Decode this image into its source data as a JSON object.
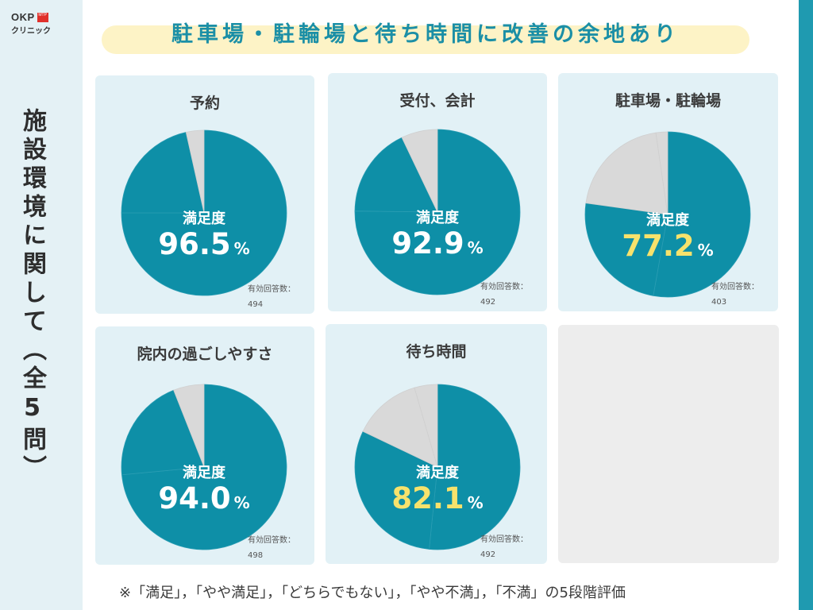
{
  "logo": {
    "brand": "OKP",
    "badge": "MTP",
    "sub": "クリニック"
  },
  "sidebar": {
    "title": "施設環境に関して（全5問）"
  },
  "heading": {
    "text": "駐車場・駐輪場と待ち時間に改善の余地あり"
  },
  "common": {
    "satisfaction_label": "満足度",
    "respondents_label": "有効回答数：",
    "percent_symbol": "%"
  },
  "colors": {
    "primary": "#0e8fa7",
    "neutral": "#d9d9d9",
    "highlight": "#f7e26c",
    "card_bg": "#e2f1f6"
  },
  "chart_data": [
    {
      "type": "pie",
      "title": "予約",
      "satisfaction": "96.5",
      "respondents": "494",
      "highlight": false,
      "slices": [
        {
          "color": "primary",
          "value": 75.0
        },
        {
          "color": "primary",
          "value": 21.5
        },
        {
          "color": "neutral",
          "value": 3.5
        }
      ]
    },
    {
      "type": "pie",
      "title": "受付、会計",
      "satisfaction": "92.9",
      "respondents": "492",
      "highlight": false,
      "slices": [
        {
          "color": "primary",
          "value": 75.2
        },
        {
          "color": "primary",
          "value": 17.7
        },
        {
          "color": "neutral",
          "value": 7.1
        }
      ]
    },
    {
      "type": "pie",
      "title": "駐車場・駐輪場",
      "satisfaction": "77.2",
      "respondents": "403",
      "highlight": true,
      "slices": [
        {
          "color": "primary",
          "value": 52.8
        },
        {
          "color": "primary",
          "value": 24.4
        },
        {
          "color": "neutral",
          "value": 20.5
        },
        {
          "color": "neutral",
          "value": 2.3
        }
      ]
    },
    {
      "type": "pie",
      "title": "院内の過ごしやすさ",
      "satisfaction": "94.0",
      "respondents": "498",
      "highlight": false,
      "slices": [
        {
          "color": "primary",
          "value": 73.5
        },
        {
          "color": "primary",
          "value": 20.5
        },
        {
          "color": "neutral",
          "value": 6.0
        }
      ]
    },
    {
      "type": "pie",
      "title": "待ち時間",
      "satisfaction": "82.1",
      "respondents": "492",
      "highlight": true,
      "slices": [
        {
          "color": "primary",
          "value": 51.6
        },
        {
          "color": "primary",
          "value": 30.5
        },
        {
          "color": "neutral",
          "value": 13.4
        },
        {
          "color": "neutral",
          "value": 4.5
        }
      ]
    }
  ],
  "footnote": "※「満足」，「やや満足」，「どちらでもない」，「やや不満」，「不満」の5段階評価"
}
